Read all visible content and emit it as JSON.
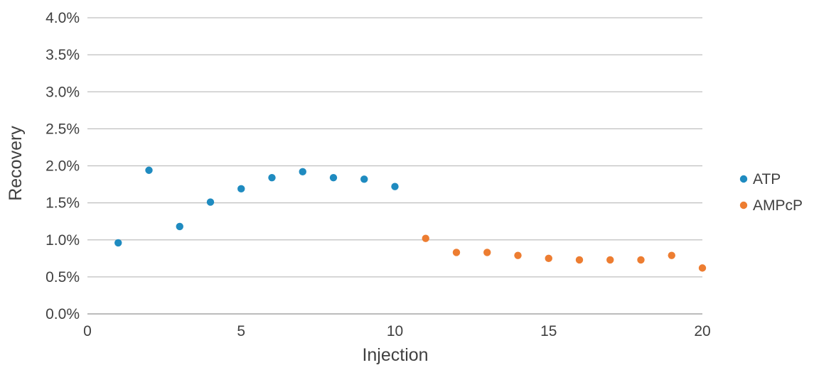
{
  "chart_data": {
    "type": "scatter",
    "title": "",
    "xlabel": "Injection",
    "ylabel": "Recovery",
    "xlim": [
      0,
      20
    ],
    "ylim": [
      0,
      0.04
    ],
    "x_ticks": [
      0,
      5,
      10,
      15,
      20
    ],
    "x_tick_labels": [
      "0",
      "5",
      "10",
      "15",
      "20"
    ],
    "y_ticks": [
      0,
      0.005,
      0.01,
      0.015,
      0.02,
      0.025,
      0.03,
      0.035,
      0.04
    ],
    "y_tick_labels": [
      "0.0%",
      "0.5%",
      "1.0%",
      "1.5%",
      "2.0%",
      "2.5%",
      "3.0%",
      "3.5%",
      "4.0%"
    ],
    "grid": "horizontal",
    "legend_position": "right",
    "series": [
      {
        "name": "ATP",
        "color": "#1f8bc0",
        "points": [
          {
            "x": 1,
            "y": 0.0096
          },
          {
            "x": 2,
            "y": 0.0194
          },
          {
            "x": 3,
            "y": 0.0118
          },
          {
            "x": 4,
            "y": 0.0151
          },
          {
            "x": 5,
            "y": 0.0169
          },
          {
            "x": 6,
            "y": 0.0184
          },
          {
            "x": 7,
            "y": 0.0192
          },
          {
            "x": 8,
            "y": 0.0184
          },
          {
            "x": 9,
            "y": 0.0182
          },
          {
            "x": 10,
            "y": 0.0172
          }
        ]
      },
      {
        "name": "AMPcP",
        "color": "#ed7d31",
        "points": [
          {
            "x": 11,
            "y": 0.0102
          },
          {
            "x": 12,
            "y": 0.0083
          },
          {
            "x": 13,
            "y": 0.0083
          },
          {
            "x": 14,
            "y": 0.0079
          },
          {
            "x": 15,
            "y": 0.0075
          },
          {
            "x": 16,
            "y": 0.0073
          },
          {
            "x": 17,
            "y": 0.0073
          },
          {
            "x": 18,
            "y": 0.0073
          },
          {
            "x": 19,
            "y": 0.0079
          },
          {
            "x": 20,
            "y": 0.0062
          }
        ]
      }
    ]
  }
}
